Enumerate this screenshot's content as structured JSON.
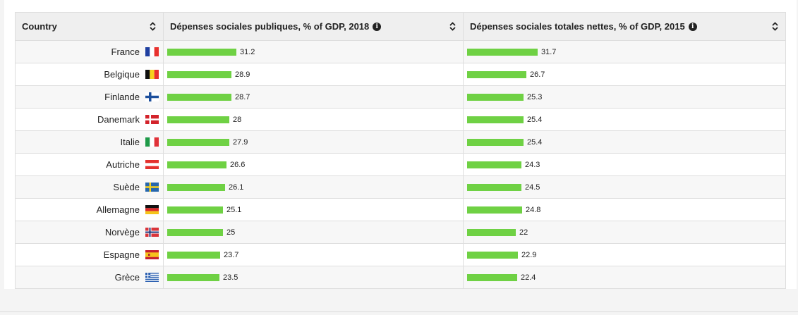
{
  "table": {
    "columns": [
      {
        "label": "Country",
        "info": false
      },
      {
        "label": "Dépenses sociales publiques, % of GDP, 2018",
        "info": true
      },
      {
        "label": "Dépenses sociales totales nettes, % of GDP, 2015",
        "info": true
      }
    ],
    "bar_color": "#6fd144"
  },
  "chart_data": {
    "type": "table",
    "categories": [
      "France",
      "Belgique",
      "Finlande",
      "Danemark",
      "Italie",
      "Autriche",
      "Suède",
      "Allemagne",
      "Norvège",
      "Espagne",
      "Grèce"
    ],
    "series": [
      {
        "name": "Dépenses sociales publiques, % of GDP, 2018",
        "values": [
          31.2,
          28.9,
          28.7,
          28,
          27.9,
          26.6,
          26.1,
          25.1,
          25,
          23.7,
          23.5
        ]
      },
      {
        "name": "Dépenses sociales totales nettes, % of GDP, 2015",
        "values": [
          31.7,
          26.7,
          25.3,
          25.4,
          25.4,
          24.3,
          24.5,
          24.8,
          22,
          22.9,
          22.4
        ]
      }
    ],
    "flags": [
      "fr",
      "be",
      "fi",
      "dk",
      "it",
      "at",
      "se",
      "de",
      "no",
      "es",
      "gr"
    ]
  }
}
